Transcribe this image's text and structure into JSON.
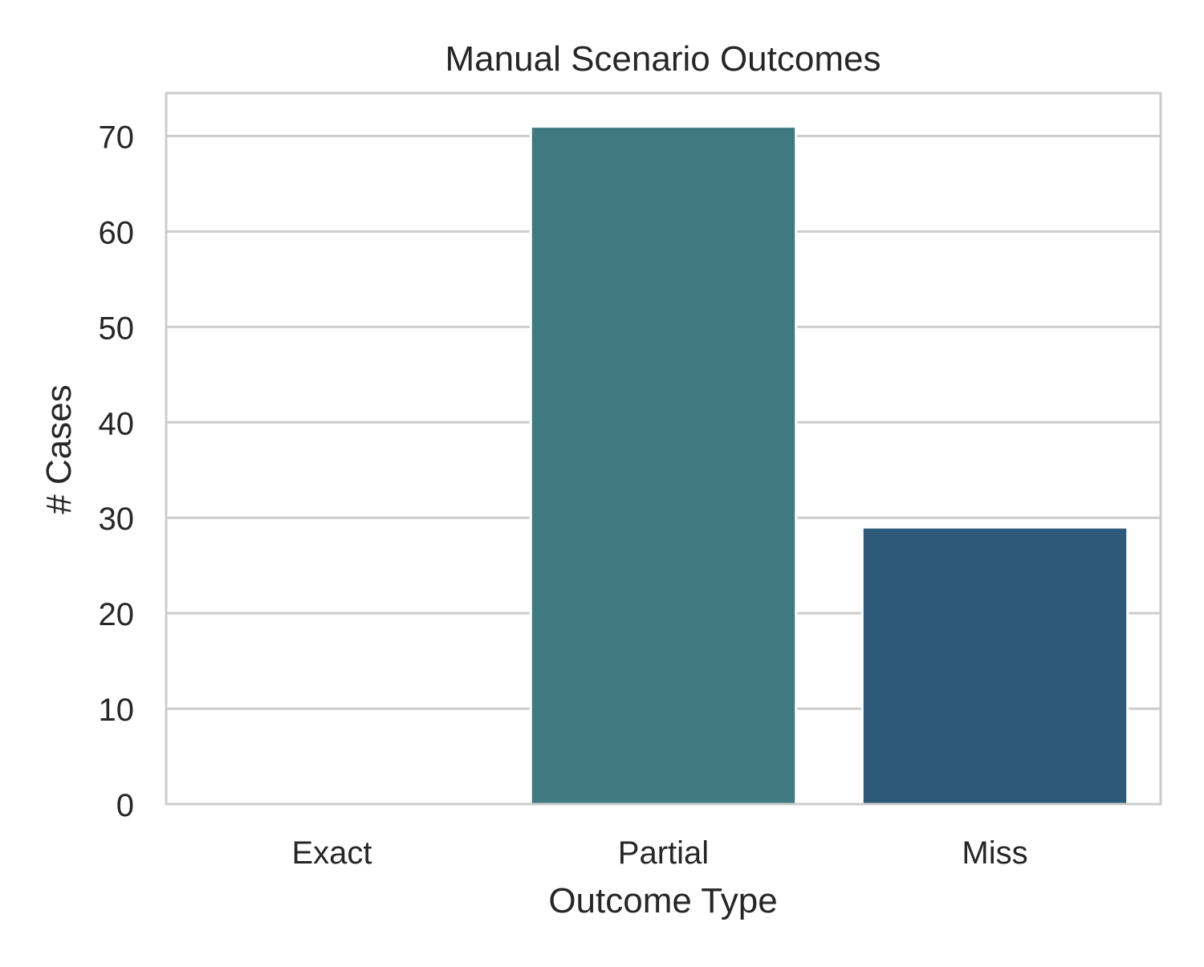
{
  "chart_data": {
    "type": "bar",
    "title": "Manual Scenario Outcomes",
    "xlabel": "Outcome Type",
    "ylabel": "# Cases",
    "categories": [
      "Exact",
      "Partial",
      "Miss"
    ],
    "values": [
      0,
      71,
      29
    ],
    "colors": [
      "#3a8c8a",
      "#3f7a80",
      "#2c5a78"
    ],
    "yticks": [
      0,
      10,
      20,
      30,
      40,
      50,
      60,
      70
    ],
    "ylim": [
      0,
      74.5
    ],
    "grid": "horizontal",
    "legend": "none"
  },
  "style": {
    "grid_color": "#cccccc",
    "spine_color": "#cccccc",
    "text_color": "#262626",
    "background": "#ffffff"
  }
}
